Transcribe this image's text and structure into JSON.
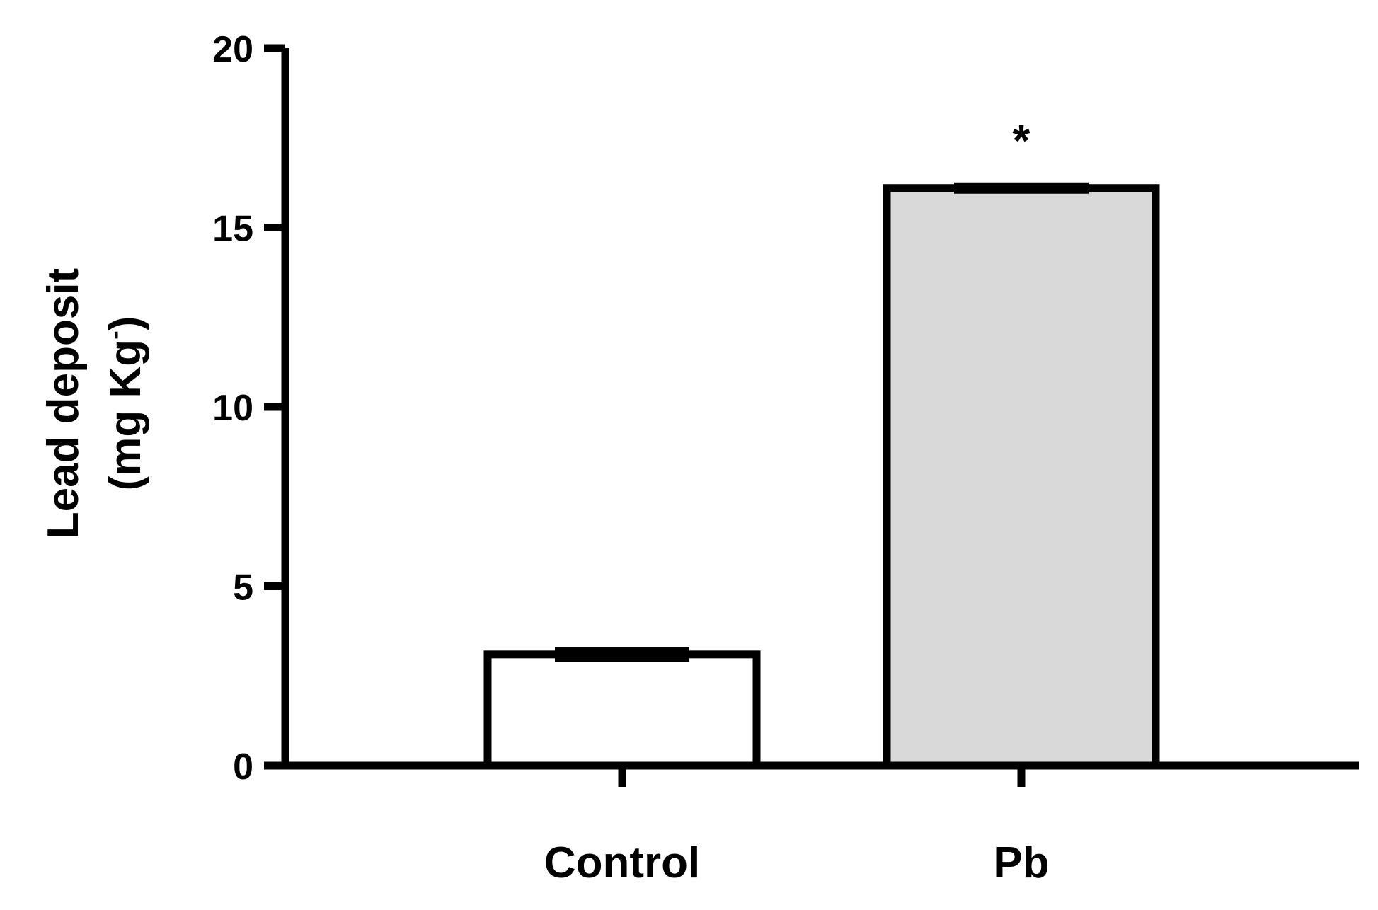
{
  "chart_data": {
    "type": "bar",
    "ylabel_line1": "Lead deposit",
    "ylabel_line2": "(mg Kg",
    "ylabel_sup": "-",
    "ylabel_close": ")",
    "ylim": [
      0,
      20
    ],
    "yticks": [
      0,
      5,
      10,
      15,
      20
    ],
    "ytick_labels": [
      "0",
      "5",
      "10",
      "15",
      "20"
    ],
    "categories": [
      "Control",
      "Pb"
    ],
    "values": [
      3.1,
      16.1
    ],
    "errors": [
      0.1,
      0.05
    ],
    "fills": [
      "#ffffff",
      "#d9d9d9"
    ],
    "annotations": [
      "",
      "*"
    ],
    "grid": false,
    "legend": "none"
  }
}
